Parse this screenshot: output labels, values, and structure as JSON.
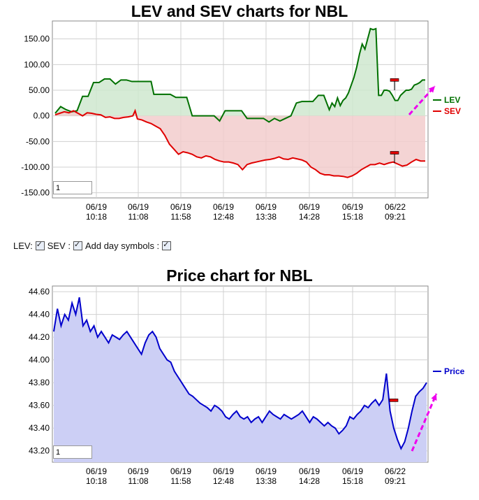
{
  "top_chart": {
    "title": "LEV and SEV charts for NBL",
    "page_input": "1"
  },
  "controls": {
    "lev_label": "LEV:",
    "sev_label": "SEV :",
    "day_label": "Add day symbols :"
  },
  "bottom_chart": {
    "title": "Price chart for NBL",
    "page_input": "1"
  },
  "chart_data": [
    {
      "type": "area",
      "title": "LEV and SEV charts for NBL",
      "ylim": [
        -160,
        185
      ],
      "yticks": [
        150,
        100,
        50,
        0,
        -50,
        -100,
        -150
      ],
      "ytick_labels": [
        "150.00",
        "100.00",
        "50.00",
        "0.00",
        "-50.00",
        "-100.00",
        "-150.00"
      ],
      "xtick_labels": [
        [
          "06/19",
          "10:18"
        ],
        [
          "06/19",
          "11:08"
        ],
        [
          "06/19",
          "11:58"
        ],
        [
          "06/19",
          "12:48"
        ],
        [
          "06/19",
          "13:38"
        ],
        [
          "06/19",
          "14:28"
        ],
        [
          "06/19",
          "15:18"
        ],
        [
          "06/22",
          "09:21"
        ]
      ],
      "legend_position": "right",
      "series": [
        {
          "name": "LEV",
          "color": "#007000",
          "fill": "#cfe8cf",
          "points": [
            [
              0,
              5
            ],
            [
              2,
              18
            ],
            [
              4,
              12
            ],
            [
              6,
              8
            ],
            [
              8,
              10
            ],
            [
              10,
              38
            ],
            [
              12,
              38
            ],
            [
              14,
              65
            ],
            [
              16,
              65
            ],
            [
              18,
              72
            ],
            [
              20,
              72
            ],
            [
              22,
              62
            ],
            [
              24,
              70
            ],
            [
              26,
              70
            ],
            [
              28,
              67
            ],
            [
              31,
              67
            ],
            [
              33,
              67
            ],
            [
              35,
              67
            ],
            [
              36,
              42
            ],
            [
              38,
              42
            ],
            [
              40,
              42
            ],
            [
              42,
              42
            ],
            [
              44,
              36
            ],
            [
              46,
              36
            ],
            [
              48,
              36
            ],
            [
              50,
              0
            ],
            [
              52,
              0
            ],
            [
              54,
              0
            ],
            [
              56,
              0
            ],
            [
              58,
              0
            ],
            [
              60,
              -10
            ],
            [
              62,
              10
            ],
            [
              64,
              10
            ],
            [
              66,
              10
            ],
            [
              68,
              10
            ],
            [
              70,
              -5
            ],
            [
              72,
              -5
            ],
            [
              74,
              -5
            ],
            [
              76,
              -5
            ],
            [
              78,
              -12
            ],
            [
              80,
              -5
            ],
            [
              82,
              -10
            ],
            [
              84,
              -5
            ],
            [
              86,
              0
            ],
            [
              88,
              25
            ],
            [
              90,
              28
            ],
            [
              92,
              28
            ],
            [
              94,
              28
            ],
            [
              96,
              40
            ],
            [
              98,
              40
            ],
            [
              100,
              12
            ],
            [
              101,
              25
            ],
            [
              102,
              18
            ],
            [
              103,
              35
            ],
            [
              104,
              20
            ],
            [
              105,
              30
            ],
            [
              106,
              35
            ],
            [
              107,
              45
            ],
            [
              108,
              60
            ],
            [
              109,
              75
            ],
            [
              110,
              95
            ],
            [
              111,
              120
            ],
            [
              112,
              140
            ],
            [
              113,
              130
            ],
            [
              114,
              150
            ],
            [
              115,
              170
            ],
            [
              116,
              168
            ],
            [
              117,
              170
            ],
            [
              118,
              40
            ],
            [
              119,
              40
            ],
            [
              120,
              50
            ],
            [
              121,
              50
            ],
            [
              122,
              48
            ],
            [
              123,
              40
            ],
            [
              124,
              30
            ],
            [
              125,
              30
            ],
            [
              126,
              40
            ],
            [
              127,
              45
            ],
            [
              128,
              50
            ],
            [
              129,
              50
            ],
            [
              130,
              52
            ],
            [
              131,
              60
            ],
            [
              132,
              62
            ],
            [
              133,
              65
            ],
            [
              134,
              70
            ],
            [
              135,
              70
            ]
          ]
        },
        {
          "name": "SEV",
          "color": "#e00000",
          "fill": "#f2cccc",
          "points": [
            [
              0,
              2
            ],
            [
              2,
              5
            ],
            [
              4,
              8
            ],
            [
              6,
              6
            ],
            [
              8,
              10
            ],
            [
              10,
              5
            ],
            [
              12,
              0
            ],
            [
              14,
              6
            ],
            [
              16,
              5
            ],
            [
              18,
              3
            ],
            [
              20,
              2
            ],
            [
              22,
              -3
            ],
            [
              24,
              -2
            ],
            [
              26,
              -5
            ],
            [
              28,
              -5
            ],
            [
              30,
              -3
            ],
            [
              32,
              -2
            ],
            [
              34,
              0
            ],
            [
              35,
              10
            ],
            [
              36,
              -6
            ],
            [
              38,
              -8
            ],
            [
              40,
              -12
            ],
            [
              42,
              -15
            ],
            [
              44,
              -20
            ],
            [
              46,
              -25
            ],
            [
              48,
              -38
            ],
            [
              50,
              -55
            ],
            [
              52,
              -65
            ],
            [
              54,
              -75
            ],
            [
              56,
              -70
            ],
            [
              58,
              -72
            ],
            [
              60,
              -75
            ],
            [
              62,
              -80
            ],
            [
              64,
              -82
            ],
            [
              66,
              -78
            ],
            [
              68,
              -80
            ],
            [
              70,
              -85
            ],
            [
              72,
              -88
            ],
            [
              74,
              -90
            ],
            [
              76,
              -90
            ],
            [
              78,
              -92
            ],
            [
              80,
              -95
            ],
            [
              82,
              -105
            ],
            [
              84,
              -95
            ],
            [
              86,
              -92
            ],
            [
              88,
              -90
            ],
            [
              90,
              -88
            ],
            [
              92,
              -86
            ],
            [
              94,
              -85
            ],
            [
              96,
              -83
            ],
            [
              98,
              -80
            ],
            [
              100,
              -84
            ],
            [
              102,
              -85
            ],
            [
              104,
              -82
            ],
            [
              106,
              -84
            ],
            [
              108,
              -86
            ],
            [
              110,
              -90
            ],
            [
              112,
              -100
            ],
            [
              114,
              -105
            ],
            [
              116,
              -112
            ],
            [
              118,
              -115
            ],
            [
              120,
              -115
            ],
            [
              122,
              -117
            ],
            [
              124,
              -117
            ],
            [
              126,
              -118
            ],
            [
              128,
              -120
            ],
            [
              130,
              -117
            ],
            [
              132,
              -112
            ],
            [
              134,
              -105
            ],
            [
              136,
              -100
            ],
            [
              138,
              -95
            ],
            [
              140,
              -95
            ],
            [
              142,
              -92
            ],
            [
              144,
              -95
            ],
            [
              146,
              -92
            ],
            [
              148,
              -90
            ],
            [
              150,
              -94
            ],
            [
              152,
              -98
            ],
            [
              154,
              -96
            ],
            [
              156,
              -90
            ],
            [
              158,
              -85
            ],
            [
              160,
              -88
            ],
            [
              162,
              -88
            ]
          ]
        }
      ]
    },
    {
      "type": "area",
      "title": "Price chart for NBL",
      "ylim": [
        43.1,
        44.65
      ],
      "yticks": [
        44.6,
        44.4,
        44.2,
        44.0,
        43.8,
        43.6,
        43.4,
        43.2
      ],
      "ytick_labels": [
        "44.60",
        "44.40",
        "44.20",
        "44.00",
        "43.80",
        "43.60",
        "43.40",
        "43.20"
      ],
      "xtick_labels": [
        [
          "06/19",
          "10:18"
        ],
        [
          "06/19",
          "11:08"
        ],
        [
          "06/19",
          "11:58"
        ],
        [
          "06/19",
          "12:48"
        ],
        [
          "06/19",
          "13:38"
        ],
        [
          "06/19",
          "14:28"
        ],
        [
          "06/19",
          "15:18"
        ],
        [
          "06/22",
          "09:21"
        ]
      ],
      "legend_position": "right",
      "series": [
        {
          "name": "Price",
          "color": "#0000cc",
          "fill": "#cccff5",
          "values": [
            44.25,
            44.45,
            44.3,
            44.4,
            44.35,
            44.5,
            44.4,
            44.55,
            44.3,
            44.35,
            44.25,
            44.3,
            44.2,
            44.25,
            44.2,
            44.15,
            44.22,
            44.2,
            44.18,
            44.22,
            44.25,
            44.2,
            44.15,
            44.1,
            44.05,
            44.15,
            44.22,
            44.25,
            44.2,
            44.1,
            44.05,
            44.0,
            43.98,
            43.9,
            43.85,
            43.8,
            43.75,
            43.7,
            43.68,
            43.65,
            43.62,
            43.6,
            43.58,
            43.55,
            43.6,
            43.58,
            43.55,
            43.5,
            43.48,
            43.52,
            43.55,
            43.5,
            43.48,
            43.5,
            43.45,
            43.48,
            43.5,
            43.45,
            43.5,
            43.55,
            43.52,
            43.5,
            43.48,
            43.52,
            43.5,
            43.48,
            43.5,
            43.52,
            43.55,
            43.5,
            43.45,
            43.5,
            43.48,
            43.45,
            43.42,
            43.45,
            43.42,
            43.4,
            43.35,
            43.38,
            43.42,
            43.5,
            43.48,
            43.52,
            43.55,
            43.6,
            43.58,
            43.62,
            43.65,
            43.6,
            43.65,
            43.88,
            43.55,
            43.4,
            43.3,
            43.22,
            43.28,
            43.4,
            43.55,
            43.68,
            43.72,
            43.75,
            43.8
          ]
        }
      ]
    }
  ]
}
